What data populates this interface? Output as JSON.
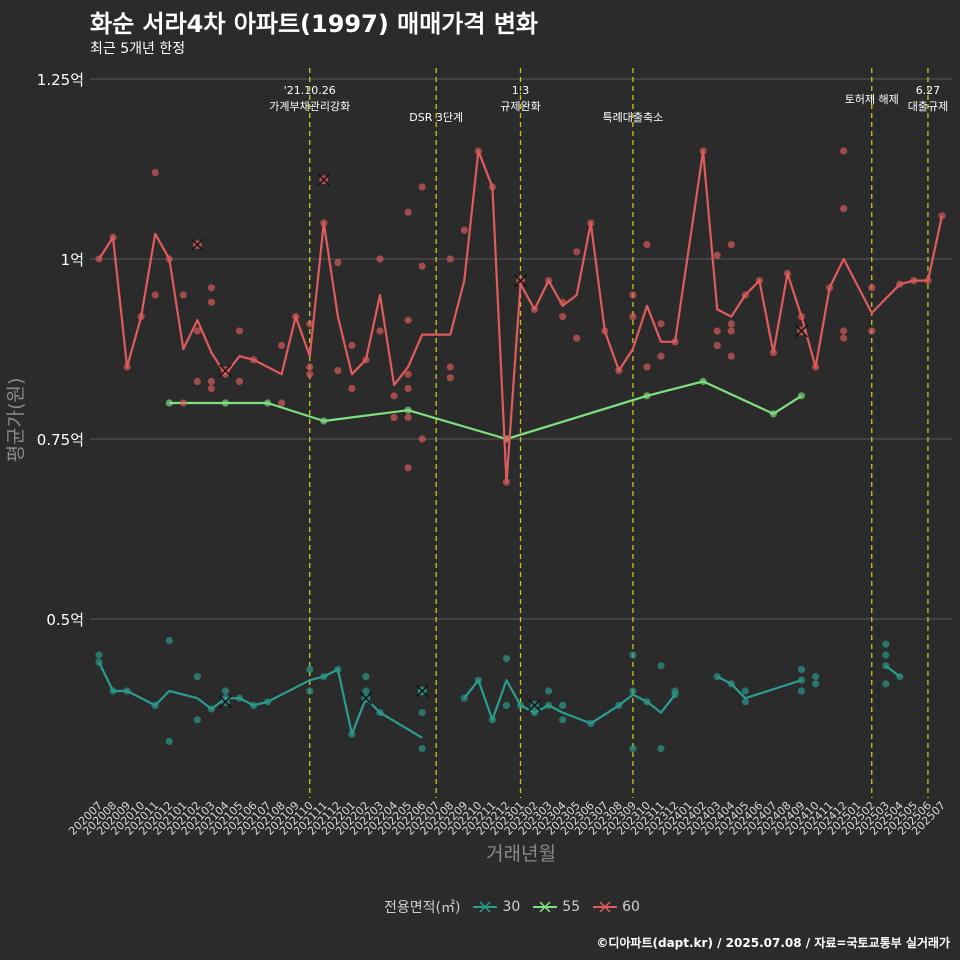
{
  "title": "화순 서라4차 아파트(1997) 매매가격 변화",
  "subtitle": "최근 5개년 한정",
  "caption": "©디아파트(dapt.kr) / 2025.07.08 / 자료=국토교통부 실거래가",
  "legend_title": "전용면적(㎡)",
  "colors": {
    "30": "#2a9d8f",
    "55": "#7fe07f",
    "60": "#e05c5c",
    "vline": "#c8c81e",
    "grid": "#5a5a5a"
  },
  "chart_data": {
    "type": "line",
    "xlabel": "거래년월",
    "ylabel": "평균가(원)",
    "ylim": [
      0.25,
      1.25
    ],
    "y_ticks": [
      {
        "v": 0.5,
        "label": "0.5억"
      },
      {
        "v": 0.75,
        "label": "0.75억"
      },
      {
        "v": 1.0,
        "label": "1억"
      },
      {
        "v": 1.25,
        "label": "1.25억"
      }
    ],
    "categories": [
      "202007",
      "202008",
      "202009",
      "202010",
      "202011",
      "202012",
      "202101",
      "202102",
      "202103",
      "202104",
      "202105",
      "202106",
      "202107",
      "202108",
      "202109",
      "202110",
      "202111",
      "202112",
      "202201",
      "202202",
      "202203",
      "202204",
      "202205",
      "202206",
      "202207",
      "202208",
      "202209",
      "202210",
      "202211",
      "202212",
      "202301",
      "202302",
      "202303",
      "202304",
      "202305",
      "202306",
      "202307",
      "202308",
      "202309",
      "202310",
      "202311",
      "202312",
      "202401",
      "202402",
      "202403",
      "202404",
      "202405",
      "202406",
      "202407",
      "202408",
      "202409",
      "202410",
      "202411",
      "202412",
      "202501",
      "202502",
      "202503",
      "202504",
      "202505",
      "202506",
      "202507"
    ],
    "annotations": [
      {
        "x": 15,
        "lines": [
          "'21.10.26",
          "가계부채관리강화"
        ]
      },
      {
        "x": 24,
        "lines": [
          "DSR 3단계"
        ]
      },
      {
        "x": 30,
        "lines": [
          "1.3",
          "규제완화"
        ]
      },
      {
        "x": 38,
        "lines": [
          "특례대출축소"
        ]
      },
      {
        "x": 55,
        "lines": [
          "토허제 해제"
        ]
      },
      {
        "x": 59,
        "lines": [
          "6.27",
          "대출규제"
        ]
      }
    ],
    "series": [
      {
        "name": "30",
        "line_segments": [
          [
            [
              0,
              0.44
            ],
            [
              1,
              0.4
            ],
            [
              2,
              0.4
            ],
            [
              4,
              0.38
            ],
            [
              5,
              0.4
            ],
            [
              7,
              0.39
            ],
            [
              8,
              0.375
            ],
            [
              9,
              0.39
            ],
            [
              10,
              0.39
            ],
            [
              11,
              0.38
            ],
            [
              12,
              0.385
            ],
            [
              15,
              0.415
            ],
            [
              16,
              0.42
            ],
            [
              17,
              0.43
            ],
            [
              18,
              0.34
            ],
            [
              19,
              0.39
            ],
            [
              20,
              0.37
            ],
            [
              23,
              0.335
            ]
          ],
          [
            [
              26,
              0.39
            ],
            [
              27,
              0.415
            ],
            [
              28,
              0.36
            ],
            [
              29,
              0.415
            ],
            [
              30,
              0.38
            ],
            [
              31,
              0.37
            ],
            [
              32,
              0.38
            ],
            [
              33,
              0.37
            ],
            [
              35,
              0.355
            ],
            [
              37,
              0.38
            ],
            [
              38,
              0.395
            ],
            [
              39,
              0.385
            ],
            [
              40,
              0.37
            ],
            [
              41,
              0.395
            ]
          ],
          [
            [
              44,
              0.42
            ],
            [
              45,
              0.41
            ],
            [
              46,
              0.39
            ],
            [
              50,
              0.415
            ]
          ],
          [
            [
              56,
              0.435
            ],
            [
              57,
              0.42
            ]
          ]
        ],
        "points": [
          [
            0,
            0.45
          ],
          [
            0,
            0.44
          ],
          [
            1,
            0.4
          ],
          [
            2,
            0.4
          ],
          [
            4,
            0.38
          ],
          [
            5,
            0.47
          ],
          [
            5,
            0.33
          ],
          [
            7,
            0.42
          ],
          [
            7,
            0.36
          ],
          [
            8,
            0.375
          ],
          [
            9,
            0.4
          ],
          [
            9,
            0.39
          ],
          [
            10,
            0.39
          ],
          [
            11,
            0.38
          ],
          [
            12,
            0.385
          ],
          [
            15,
            0.43
          ],
          [
            15,
            0.4
          ],
          [
            16,
            0.42
          ],
          [
            17,
            0.43
          ],
          [
            18,
            0.34
          ],
          [
            19,
            0.42
          ],
          [
            19,
            0.4
          ],
          [
            20,
            0.37
          ],
          [
            23,
            0.4
          ],
          [
            23,
            0.37
          ],
          [
            23,
            0.32
          ],
          [
            26,
            0.39
          ],
          [
            27,
            0.415
          ],
          [
            28,
            0.36
          ],
          [
            29,
            0.445
          ],
          [
            29,
            0.38
          ],
          [
            30,
            0.38
          ],
          [
            31,
            0.37
          ],
          [
            32,
            0.4
          ],
          [
            32,
            0.38
          ],
          [
            33,
            0.38
          ],
          [
            33,
            0.36
          ],
          [
            35,
            0.355
          ],
          [
            37,
            0.38
          ],
          [
            38,
            0.45
          ],
          [
            38,
            0.4
          ],
          [
            38,
            0.32
          ],
          [
            39,
            0.385
          ],
          [
            40,
            0.435
          ],
          [
            40,
            0.32
          ],
          [
            41,
            0.4
          ],
          [
            41,
            0.395
          ],
          [
            44,
            0.42
          ],
          [
            45,
            0.41
          ],
          [
            46,
            0.4
          ],
          [
            46,
            0.385
          ],
          [
            50,
            0.43
          ],
          [
            50,
            0.415
          ],
          [
            50,
            0.4
          ],
          [
            51,
            0.42
          ],
          [
            51,
            0.41
          ],
          [
            56,
            0.465
          ],
          [
            56,
            0.45
          ],
          [
            56,
            0.435
          ],
          [
            56,
            0.41
          ],
          [
            57,
            0.42
          ]
        ],
        "crosses": [
          [
            9,
            0.385
          ],
          [
            19,
            0.39
          ],
          [
            23,
            0.4
          ],
          [
            31,
            0.38
          ]
        ]
      },
      {
        "name": "55",
        "line_segments": [
          [
            [
              5,
              0.8
            ],
            [
              9,
              0.8
            ],
            [
              12,
              0.8
            ],
            [
              16,
              0.775
            ],
            [
              22,
              0.79
            ],
            [
              29,
              0.75
            ],
            [
              39,
              0.81
            ],
            [
              43,
              0.83
            ],
            [
              48,
              0.785
            ],
            [
              50,
              0.81
            ]
          ]
        ],
        "points": [
          [
            5,
            0.8
          ],
          [
            9,
            0.8
          ],
          [
            12,
            0.8
          ],
          [
            16,
            0.775
          ],
          [
            22,
            0.79
          ],
          [
            29,
            0.75
          ],
          [
            39,
            0.81
          ],
          [
            43,
            0.83
          ],
          [
            48,
            0.785
          ],
          [
            50,
            0.81
          ]
        ],
        "crosses": []
      },
      {
        "name": "60",
        "line_segments": [
          [
            [
              0,
              1.0
            ],
            [
              1,
              1.03
            ],
            [
              2,
              0.85
            ],
            [
              3,
              0.92
            ],
            [
              4,
              1.035
            ],
            [
              5,
              1.0
            ],
            [
              6,
              0.875
            ],
            [
              7,
              0.915
            ],
            [
              8,
              0.87
            ],
            [
              9,
              0.84
            ],
            [
              10,
              0.865
            ],
            [
              11,
              0.86
            ],
            [
              13,
              0.84
            ],
            [
              14,
              0.92
            ],
            [
              15,
              0.865
            ],
            [
              16,
              1.05
            ],
            [
              17,
              0.92
            ],
            [
              18,
              0.84
            ],
            [
              19,
              0.86
            ],
            [
              20,
              0.95
            ],
            [
              21,
              0.825
            ],
            [
              22,
              0.85
            ],
            [
              23,
              0.895
            ],
            [
              25,
              0.895
            ],
            [
              26,
              0.97
            ],
            [
              27,
              1.15
            ],
            [
              28,
              1.1
            ],
            [
              29,
              0.69
            ],
            [
              30,
              0.965
            ],
            [
              31,
              0.93
            ],
            [
              32,
              0.97
            ],
            [
              33,
              0.935
            ],
            [
              34,
              0.95
            ],
            [
              35,
              1.05
            ],
            [
              36,
              0.9
            ],
            [
              37,
              0.845
            ],
            [
              38,
              0.875
            ],
            [
              39,
              0.935
            ],
            [
              40,
              0.885
            ],
            [
              41,
              0.885
            ],
            [
              43,
              1.15
            ],
            [
              44,
              0.93
            ],
            [
              45,
              0.92
            ],
            [
              46,
              0.95
            ],
            [
              47,
              0.97
            ],
            [
              48,
              0.87
            ],
            [
              49,
              0.98
            ],
            [
              50,
              0.92
            ],
            [
              51,
              0.85
            ],
            [
              52,
              0.96
            ],
            [
              53,
              1.0
            ],
            [
              55,
              0.925
            ],
            [
              57,
              0.965
            ],
            [
              58,
              0.97
            ],
            [
              59,
              0.97
            ],
            [
              60,
              1.06
            ]
          ]
        ],
        "points": [
          [
            0,
            1.0
          ],
          [
            1,
            1.03
          ],
          [
            2,
            0.85
          ],
          [
            3,
            0.92
          ],
          [
            4,
            1.12
          ],
          [
            4,
            0.95
          ],
          [
            5,
            1.0
          ],
          [
            6,
            0.95
          ],
          [
            6,
            0.8
          ],
          [
            7,
            0.9
          ],
          [
            7,
            0.83
          ],
          [
            8,
            0.96
          ],
          [
            8,
            0.94
          ],
          [
            8,
            0.83
          ],
          [
            8,
            0.82
          ],
          [
            9,
            0.84
          ],
          [
            10,
            0.9
          ],
          [
            10,
            0.83
          ],
          [
            11,
            0.86
          ],
          [
            13,
            0.88
          ],
          [
            13,
            0.8
          ],
          [
            14,
            0.92
          ],
          [
            15,
            0.91
          ],
          [
            15,
            0.85
          ],
          [
            15,
            0.84
          ],
          [
            16,
            1.05
          ],
          [
            17,
            0.995
          ],
          [
            17,
            0.845
          ],
          [
            18,
            0.88
          ],
          [
            18,
            0.82
          ],
          [
            19,
            0.86
          ],
          [
            20,
            1.0
          ],
          [
            20,
            0.9
          ],
          [
            21,
            0.81
          ],
          [
            21,
            0.78
          ],
          [
            22,
            1.065
          ],
          [
            22,
            0.915
          ],
          [
            22,
            0.84
          ],
          [
            22,
            0.82
          ],
          [
            22,
            0.78
          ],
          [
            22,
            0.71
          ],
          [
            23,
            1.1
          ],
          [
            23,
            0.99
          ],
          [
            23,
            0.75
          ],
          [
            25,
            1.0
          ],
          [
            25,
            0.85
          ],
          [
            25,
            0.835
          ],
          [
            26,
            1.04
          ],
          [
            27,
            1.15
          ],
          [
            28,
            1.1
          ],
          [
            29,
            0.75
          ],
          [
            29,
            0.69
          ],
          [
            31,
            0.93
          ],
          [
            32,
            0.97
          ],
          [
            33,
            0.94
          ],
          [
            33,
            0.92
          ],
          [
            34,
            1.01
          ],
          [
            34,
            0.89
          ],
          [
            35,
            1.05
          ],
          [
            36,
            0.9
          ],
          [
            37,
            0.845
          ],
          [
            38,
            0.95
          ],
          [
            38,
            0.92
          ],
          [
            39,
            1.02
          ],
          [
            39,
            0.85
          ],
          [
            40,
            0.91
          ],
          [
            40,
            0.865
          ],
          [
            41,
            0.885
          ],
          [
            43,
            1.15
          ],
          [
            44,
            1.005
          ],
          [
            44,
            0.9
          ],
          [
            44,
            0.88
          ],
          [
            45,
            1.02
          ],
          [
            45,
            0.91
          ],
          [
            45,
            0.9
          ],
          [
            45,
            0.865
          ],
          [
            46,
            0.95
          ],
          [
            47,
            0.97
          ],
          [
            48,
            0.87
          ],
          [
            49,
            0.98
          ],
          [
            50,
            0.92
          ],
          [
            51,
            0.85
          ],
          [
            52,
            0.96
          ],
          [
            53,
            1.15
          ],
          [
            53,
            1.07
          ],
          [
            53,
            0.9
          ],
          [
            53,
            0.89
          ],
          [
            55,
            0.96
          ],
          [
            55,
            0.9
          ],
          [
            57,
            0.965
          ],
          [
            58,
            0.97
          ],
          [
            59,
            0.97
          ],
          [
            60,
            1.06
          ]
        ],
        "crosses": [
          [
            7,
            1.02
          ],
          [
            9,
            0.845
          ],
          [
            16,
            1.11
          ],
          [
            30,
            0.97
          ],
          [
            50,
            0.9
          ]
        ]
      }
    ]
  }
}
